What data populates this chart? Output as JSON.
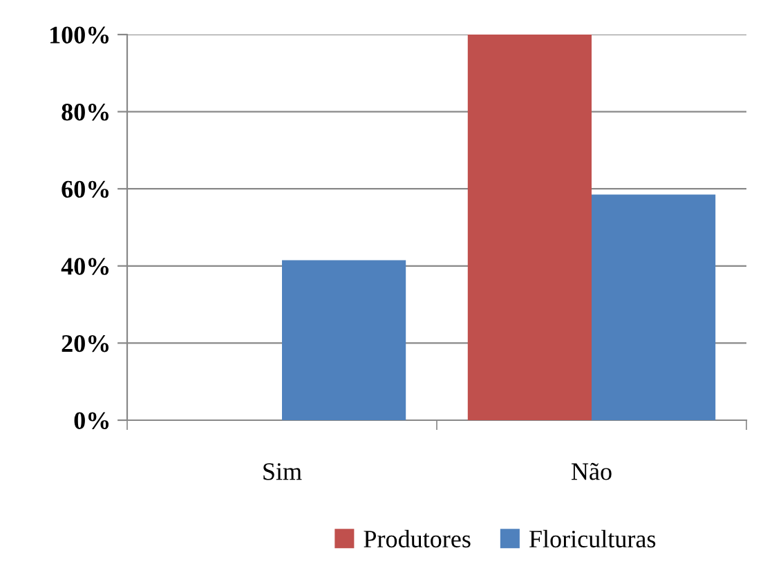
{
  "chart_data": {
    "type": "bar",
    "categories": [
      "Sim",
      "Não"
    ],
    "series": [
      {
        "name": "Produtores",
        "color": "#c0504d",
        "values": [
          0,
          100
        ]
      },
      {
        "name": "Floriculturas",
        "color": "#4f81bd",
        "values": [
          41.5,
          58.5
        ]
      }
    ],
    "ylim": [
      0,
      100
    ],
    "yticks": [
      {
        "value": 0,
        "label": "0%"
      },
      {
        "value": 20,
        "label": "20%"
      },
      {
        "value": 40,
        "label": "40%"
      },
      {
        "value": 60,
        "label": "60%"
      },
      {
        "value": 80,
        "label": "80%"
      },
      {
        "value": 100,
        "label": "100%"
      }
    ],
    "grid": "y",
    "legend": "bottom"
  }
}
